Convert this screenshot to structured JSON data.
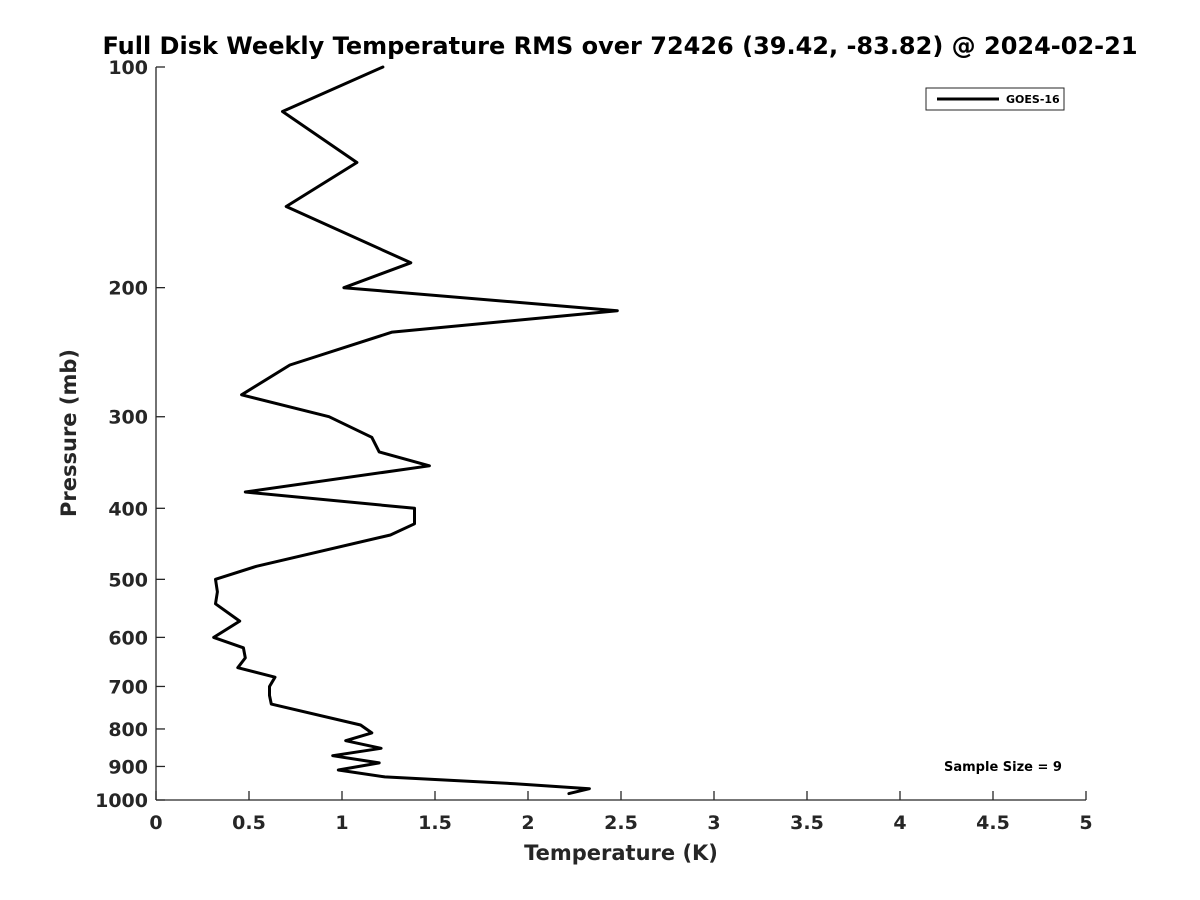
{
  "chart_data": {
    "type": "line",
    "title": "Full Disk Weekly Temperature RMS over 72426 (39.42, -83.82) @ 2024-02-21",
    "xlabel": "Temperature (K)",
    "ylabel": "Pressure (mb)",
    "xlim": [
      0,
      5
    ],
    "ylim": [
      100,
      1000
    ],
    "y_scale": "log",
    "y_reversed": true,
    "x_ticks": [
      0,
      0.5,
      1,
      1.5,
      2,
      2.5,
      3,
      3.5,
      4,
      4.5,
      5
    ],
    "x_tick_labels": [
      "0",
      "0.5",
      "1",
      "1.5",
      "2",
      "2.5",
      "3",
      "3.5",
      "4",
      "4.5",
      "5"
    ],
    "y_ticks": [
      100,
      200,
      300,
      400,
      500,
      600,
      700,
      800,
      900,
      1000
    ],
    "y_tick_labels": [
      "100",
      "200",
      "300",
      "400",
      "500",
      "600",
      "700",
      "800",
      "900",
      "1000"
    ],
    "grid": false,
    "legend_position": "top-right",
    "series": [
      {
        "name": "GOES-16",
        "color": "#000000",
        "x": [
          1.22,
          0.68,
          1.08,
          0.7,
          1.37,
          1.01,
          2.48,
          1.27,
          0.72,
          0.46,
          0.93,
          1.16,
          1.2,
          1.47,
          0.48,
          1.39,
          1.39,
          1.26,
          0.54,
          0.32,
          0.33,
          0.32,
          0.45,
          0.31,
          0.47,
          0.48,
          0.44,
          0.64,
          0.61,
          0.61,
          0.62,
          1.1,
          1.16,
          1.02,
          1.21,
          0.95,
          1.2,
          0.98,
          1.23,
          1.93,
          2.33,
          2.22
        ],
        "y": [
          100,
          115,
          135,
          155,
          185,
          200,
          215,
          230,
          255,
          280,
          300,
          320,
          335,
          350,
          380,
          400,
          420,
          435,
          480,
          500,
          520,
          540,
          570,
          600,
          620,
          640,
          660,
          680,
          700,
          720,
          740,
          790,
          810,
          830,
          850,
          870,
          890,
          910,
          930,
          950,
          965,
          980
        ]
      }
    ],
    "annotations": [
      "Sample Size = 9"
    ]
  }
}
